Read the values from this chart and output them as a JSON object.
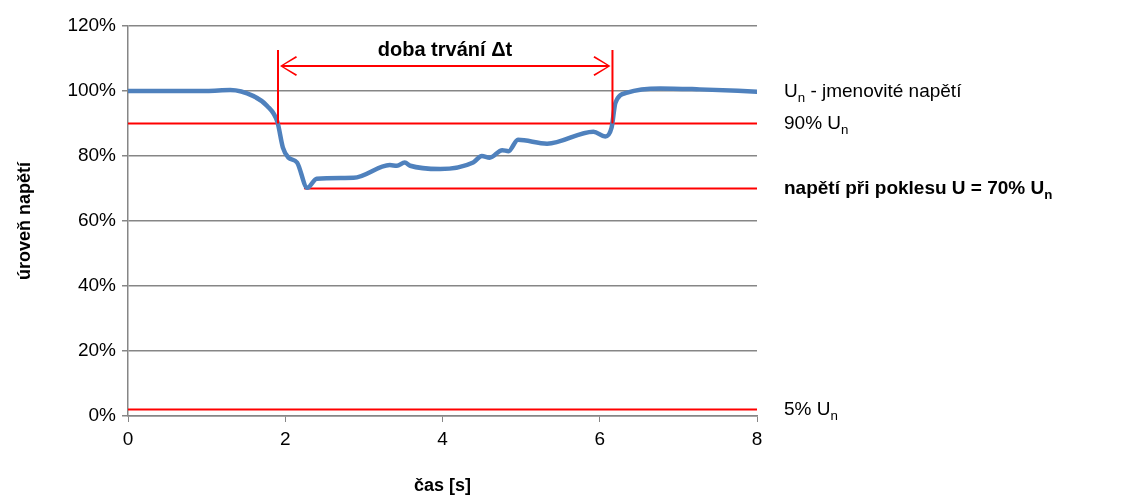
{
  "chart_data": {
    "type": "line",
    "xlabel": "čas [s]",
    "ylabel": "úroveň napětí",
    "xlim": [
      0,
      8
    ],
    "xticks": [
      0,
      2,
      4,
      6,
      8
    ],
    "ylim": [
      0,
      120
    ],
    "yticks": [
      {
        "value": 0,
        "label": "0%"
      },
      {
        "value": 20,
        "label": "20%"
      },
      {
        "value": 40,
        "label": "40%"
      },
      {
        "value": 60,
        "label": "60%"
      },
      {
        "value": 80,
        "label": "80%"
      },
      {
        "value": 100,
        "label": "100%"
      },
      {
        "value": 120,
        "label": "120%"
      }
    ],
    "grid": "y",
    "legend": false,
    "marker": "none",
    "line_style": "solid",
    "series": [
      {
        "name": "U$_{n}$ - jmenovité napětí",
        "color": "#4f81bd",
        "x": [
          0,
          1.0,
          1.3,
          1.59,
          1.77,
          1.9,
          1.97,
          2.04,
          2.15,
          2.28,
          2.4,
          2.87,
          3.33,
          3.42,
          3.52,
          3.59,
          3.97,
          4.39,
          4.5,
          4.6,
          4.76,
          4.84,
          4.96,
          5.33,
          5.92,
          6.07,
          6.15,
          6.2,
          6.35,
          6.77,
          7.27,
          8
        ],
        "values": [
          100,
          100,
          100.3,
          98.5,
          95.4,
          90.5,
          82.6,
          79.5,
          78,
          70.2,
          73,
          73.3,
          77.2,
          77,
          78,
          77,
          76,
          78,
          80,
          79.5,
          81.8,
          81.5,
          85,
          83.8,
          87.5,
          86,
          88.7,
          96.4,
          99.5,
          100.8,
          100.5,
          99.8
        ]
      },
      {
        "name": "napětí při poklesu U = 70% U$_{n}$",
        "color": "#ff0000",
        "x": [
          2.25,
          8
        ],
        "values": [
          70,
          70
        ]
      }
    ],
    "ref_lines": [
      {
        "axis": "y",
        "value": 90,
        "label": "90% U$_{n}$",
        "color": "#ff0000"
      },
      {
        "axis": "y",
        "value": 2,
        "label": "5% U$_{n}$",
        "color": "#ff0000"
      }
    ],
    "annotations": [
      "doba trvání Δt"
    ]
  }
}
